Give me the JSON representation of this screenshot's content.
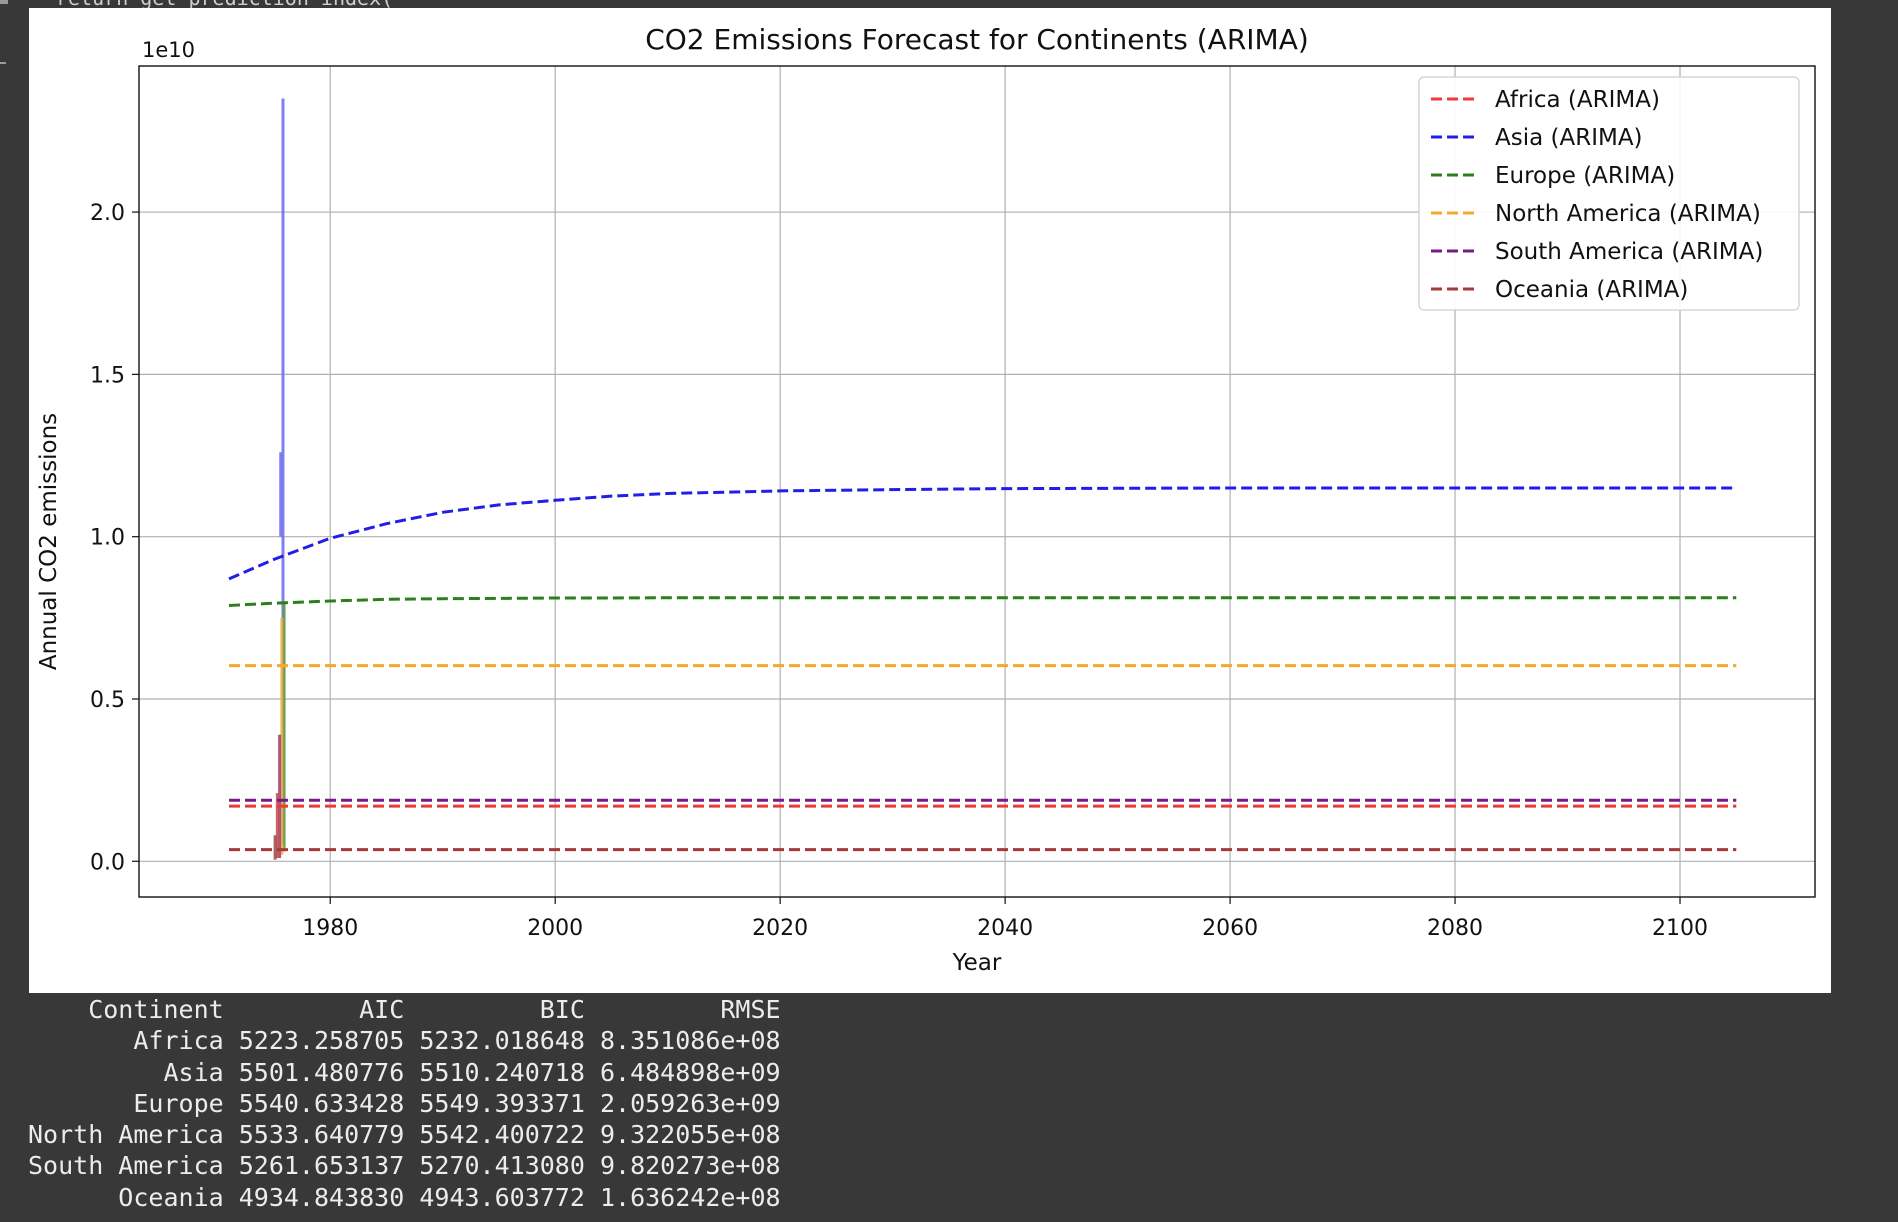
{
  "notebook": {
    "code_fragment": "return get_prediction_index("
  },
  "chart_data": {
    "type": "line",
    "title": "CO2 Emissions Forecast for Continents (ARIMA)",
    "xlabel": "Year",
    "ylabel": "Annual CO2 emissions",
    "y_offset_label": "1e10",
    "xlim": [
      1963,
      2112
    ],
    "ylim": [
      -1100000000.0,
      24500000000.0
    ],
    "xticks": [
      1980,
      2000,
      2020,
      2040,
      2060,
      2080,
      2100
    ],
    "yticks": [
      0.0,
      5000000000.0,
      10000000000.0,
      15000000000.0,
      20000000000.0
    ],
    "ytick_labels": [
      "0.0",
      "0.5",
      "1.0",
      "1.5",
      "2.0"
    ],
    "grid": true,
    "legend_position": "top-right",
    "forecast_x": [
      1971,
      1975,
      1980,
      1985,
      1990,
      1995,
      2000,
      2005,
      2010,
      2015,
      2020,
      2030,
      2040,
      2050,
      2060,
      2070,
      2080,
      2090,
      2100,
      2105
    ],
    "series": [
      {
        "name": "Africa (ARIMA)",
        "color": "#f03a3a",
        "style": "dashed",
        "values": [
          1700000000.0,
          1700000000.0,
          1700000000.0,
          1700000000.0,
          1700000000.0,
          1700000000.0,
          1700000000.0,
          1700000000.0,
          1700000000.0,
          1700000000.0,
          1700000000.0,
          1700000000.0,
          1700000000.0,
          1700000000.0,
          1700000000.0,
          1700000000.0,
          1700000000.0,
          1700000000.0,
          1700000000.0,
          1700000000.0
        ]
      },
      {
        "name": "Asia (ARIMA)",
        "color": "#1f1fe8",
        "style": "dashed",
        "values": [
          8700000000.0,
          9300000000.0,
          9950000000.0,
          10400000000.0,
          10750000000.0,
          10980000000.0,
          11120000000.0,
          11250000000.0,
          11330000000.0,
          11370000000.0,
          11410000000.0,
          11450000000.0,
          11480000000.0,
          11490000000.0,
          11500000000.0,
          11500000000.0,
          11500000000.0,
          11500000000.0,
          11500000000.0,
          11500000000.0
        ]
      },
      {
        "name": "Europe (ARIMA)",
        "color": "#2e7d1e",
        "style": "dashed",
        "values": [
          7880000000.0,
          7950000000.0,
          8020000000.0,
          8070000000.0,
          8090000000.0,
          8100000000.0,
          8110000000.0,
          8110000000.0,
          8120000000.0,
          8120000000.0,
          8120000000.0,
          8120000000.0,
          8120000000.0,
          8120000000.0,
          8120000000.0,
          8120000000.0,
          8120000000.0,
          8120000000.0,
          8120000000.0,
          8120000000.0
        ]
      },
      {
        "name": "North America (ARIMA)",
        "color": "#f6a828",
        "style": "dashed",
        "values": [
          6030000000.0,
          6030000000.0,
          6030000000.0,
          6030000000.0,
          6030000000.0,
          6030000000.0,
          6030000000.0,
          6030000000.0,
          6030000000.0,
          6030000000.0,
          6030000000.0,
          6030000000.0,
          6030000000.0,
          6030000000.0,
          6030000000.0,
          6030000000.0,
          6030000000.0,
          6030000000.0,
          6030000000.0,
          6030000000.0
        ]
      },
      {
        "name": "South America (ARIMA)",
        "color": "#7a1a8a",
        "style": "dashed",
        "values": [
          1880000000.0,
          1880000000.0,
          1880000000.0,
          1880000000.0,
          1880000000.0,
          1880000000.0,
          1880000000.0,
          1880000000.0,
          1880000000.0,
          1880000000.0,
          1880000000.0,
          1880000000.0,
          1880000000.0,
          1880000000.0,
          1880000000.0,
          1880000000.0,
          1880000000.0,
          1880000000.0,
          1880000000.0,
          1880000000.0
        ]
      },
      {
        "name": "Oceania (ARIMA)",
        "color": "#a43a3a",
        "style": "dashed",
        "values": [
          360000000.0,
          360000000.0,
          360000000.0,
          360000000.0,
          360000000.0,
          360000000.0,
          360000000.0,
          360000000.0,
          360000000.0,
          360000000.0,
          360000000.0,
          360000000.0,
          360000000.0,
          360000000.0,
          360000000.0,
          360000000.0,
          360000000.0,
          360000000.0,
          360000000.0,
          360000000.0
        ]
      }
    ],
    "historical_spikes": [
      {
        "color": "#6a6af0",
        "x": 1975.8,
        "y_from": 500000000.0,
        "y_to": 23500000000.0
      },
      {
        "color": "#6a6af0",
        "x": 1975.6,
        "y_from": 10000000000.0,
        "y_to": 12600000000.0
      },
      {
        "color": "#5a9a40",
        "x": 1975.9,
        "y_from": 300000000.0,
        "y_to": 8000000000.0
      },
      {
        "color": "#f3b040",
        "x": 1975.7,
        "y_from": 200000000.0,
        "y_to": 7500000000.0
      },
      {
        "color": "#a33a6a",
        "x": 1975.5,
        "y_from": 100000000.0,
        "y_to": 3900000000.0
      },
      {
        "color": "#c04a4a",
        "x": 1975.3,
        "y_from": 100000000.0,
        "y_to": 2100000000.0
      },
      {
        "color": "#a0473f",
        "x": 1975.1,
        "y_from": 50000000.0,
        "y_to": 800000000.0
      }
    ]
  },
  "stats_table": {
    "columns": [
      "Continent",
      "AIC",
      "BIC",
      "RMSE"
    ],
    "rows": [
      [
        "Africa",
        "5223.258705",
        "5232.018648",
        "8.351086e+08"
      ],
      [
        "Asia",
        "5501.480776",
        "5510.240718",
        "6.484898e+09"
      ],
      [
        "Europe",
        "5540.633428",
        "5549.393371",
        "2.059263e+09"
      ],
      [
        "North America",
        "5533.640779",
        "5542.400722",
        "9.322055e+08"
      ],
      [
        "South America",
        "5261.653137",
        "5270.413080",
        "9.820273e+08"
      ],
      [
        "Oceania",
        "4934.843830",
        "4943.603772",
        "1.636242e+08"
      ]
    ]
  }
}
